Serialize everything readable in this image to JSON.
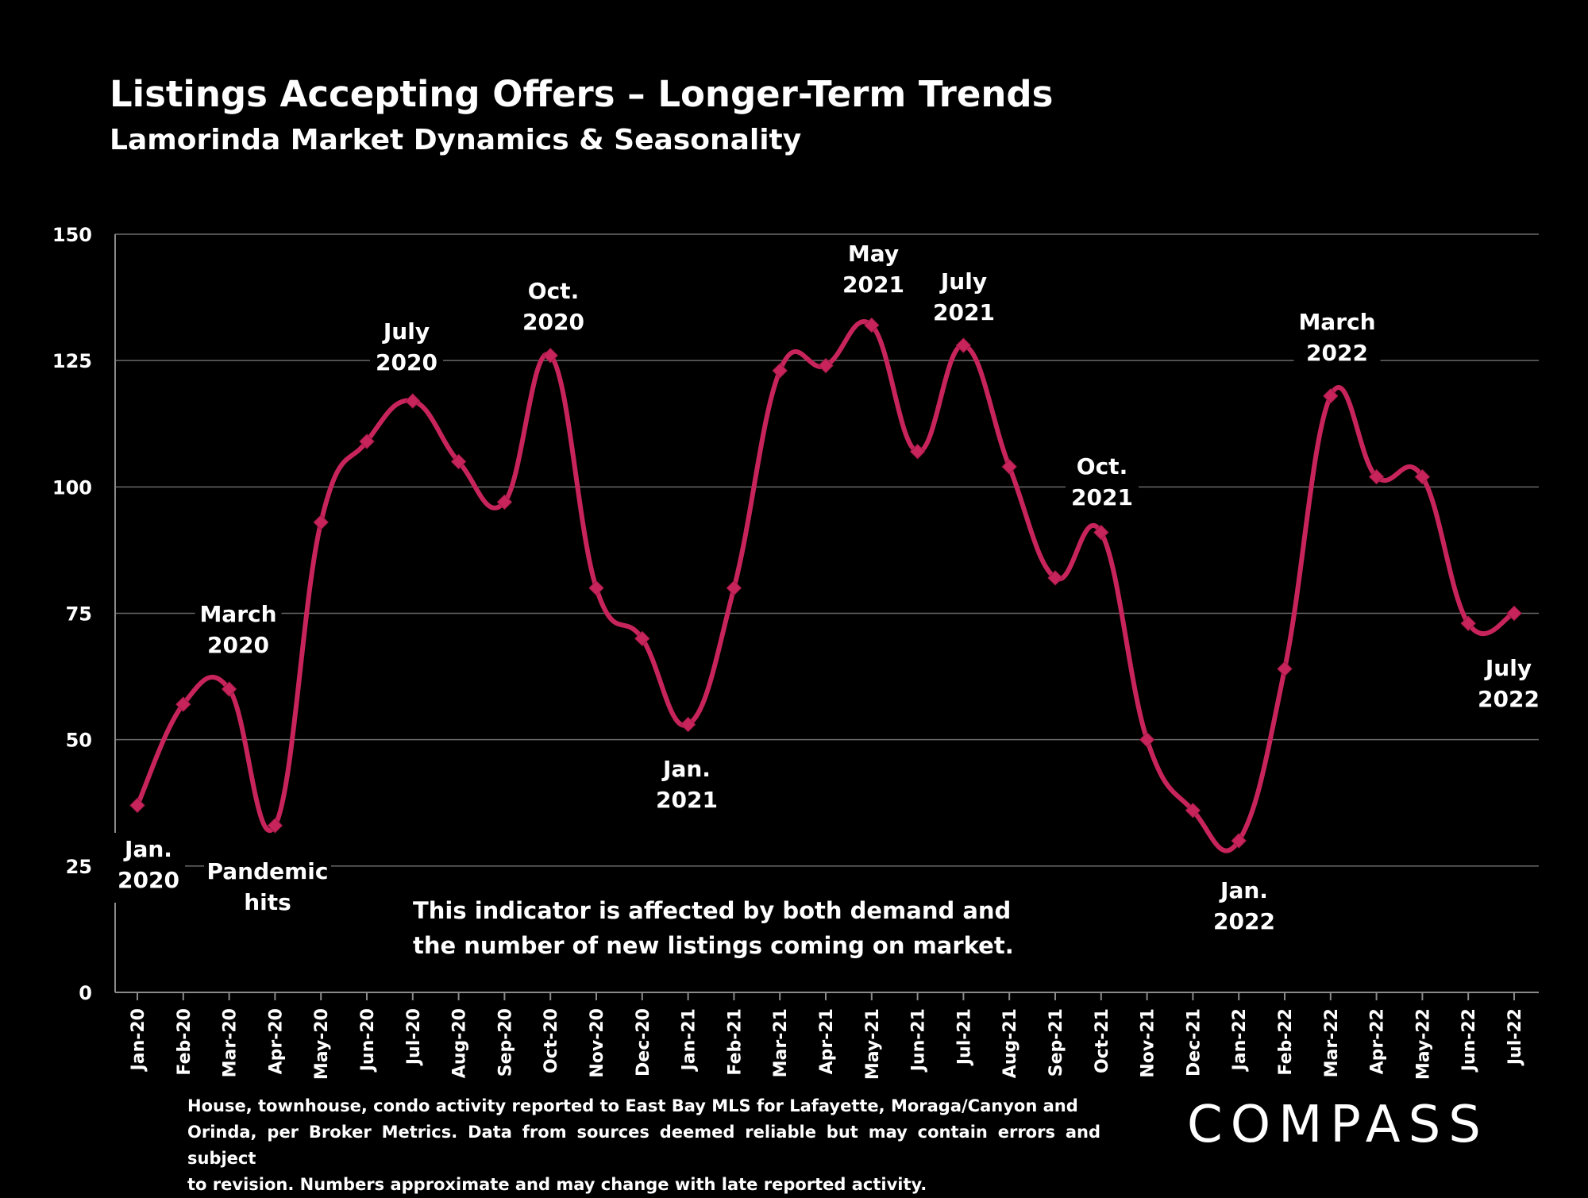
{
  "header": {
    "title": "Listings Accepting Offers – Longer-Term Trends",
    "subtitle": "Lamorinda Market Dynamics & Seasonality"
  },
  "colors": {
    "background": "#000000",
    "series": "#c8245c",
    "grid": "#6a6a6a",
    "text": "#ffffff"
  },
  "chart_data": {
    "type": "line",
    "title": "Listings Accepting Offers – Longer-Term Trends",
    "subtitle": "Lamorinda Market Dynamics & Seasonality",
    "xlabel": "",
    "ylabel": "",
    "ylim": [
      0,
      150
    ],
    "yticks": [
      0,
      25,
      50,
      75,
      100,
      125,
      150
    ],
    "grid": true,
    "legend": "none",
    "categories": [
      "Jan-20",
      "Feb-20",
      "Mar-20",
      "Apr-20",
      "May-20",
      "Jun-20",
      "Jul-20",
      "Aug-20",
      "Sep-20",
      "Oct-20",
      "Nov-20",
      "Dec-20",
      "Jan-21",
      "Feb-21",
      "Mar-21",
      "Apr-21",
      "May-21",
      "Jun-21",
      "Jul-21",
      "Aug-21",
      "Sep-21",
      "Oct-21",
      "Nov-21",
      "Dec-21",
      "Jan-22",
      "Feb-22",
      "Mar-22",
      "Apr-22",
      "May-22",
      "Jun-22",
      "Jul-22"
    ],
    "series": [
      {
        "values": [
          37,
          57,
          60,
          33,
          93,
          109,
          117,
          105,
          97,
          126,
          80,
          70,
          53,
          80,
          123,
          124,
          132,
          107,
          128,
          104,
          82,
          91,
          50,
          36,
          30,
          64,
          118,
          102,
          102,
          73,
          75
        ]
      }
    ],
    "annotations": [
      {
        "lines": [
          "Jan.",
          "2020"
        ],
        "category": "Jan-20"
      },
      {
        "lines": [
          "March",
          "2020"
        ],
        "category": "Mar-20"
      },
      {
        "lines": [
          "Pandemic",
          "hits"
        ],
        "category": "Apr-20"
      },
      {
        "lines": [
          "July",
          "2020"
        ],
        "category": "Jul-20"
      },
      {
        "lines": [
          "Oct.",
          "2020"
        ],
        "category": "Oct-20"
      },
      {
        "lines": [
          "Jan.",
          "2021"
        ],
        "category": "Jan-21"
      },
      {
        "lines": [
          "May",
          "2021"
        ],
        "category": "May-21"
      },
      {
        "lines": [
          "July",
          "2021"
        ],
        "category": "Jul-21"
      },
      {
        "lines": [
          "Oct.",
          "2021"
        ],
        "category": "Oct-21"
      },
      {
        "lines": [
          "Jan.",
          "2022"
        ],
        "category": "Jan-22"
      },
      {
        "lines": [
          "March",
          "2022"
        ],
        "category": "Mar-22"
      },
      {
        "lines": [
          "July",
          "2022"
        ],
        "category": "Jul-22"
      }
    ],
    "note": [
      "This indicator is affected by both demand and",
      "the number of new listings coming on market."
    ]
  },
  "footnote": {
    "line1": "House, townhouse, condo activity reported to East Bay MLS for Lafayette, Moraga/Canyon and",
    "line2": "Orinda, per Broker Metrics. Data from sources deemed reliable but may contain errors and subject",
    "line3": "to revision. Numbers approximate and may change with late reported activity."
  },
  "logo": {
    "text": "COMPASS"
  }
}
